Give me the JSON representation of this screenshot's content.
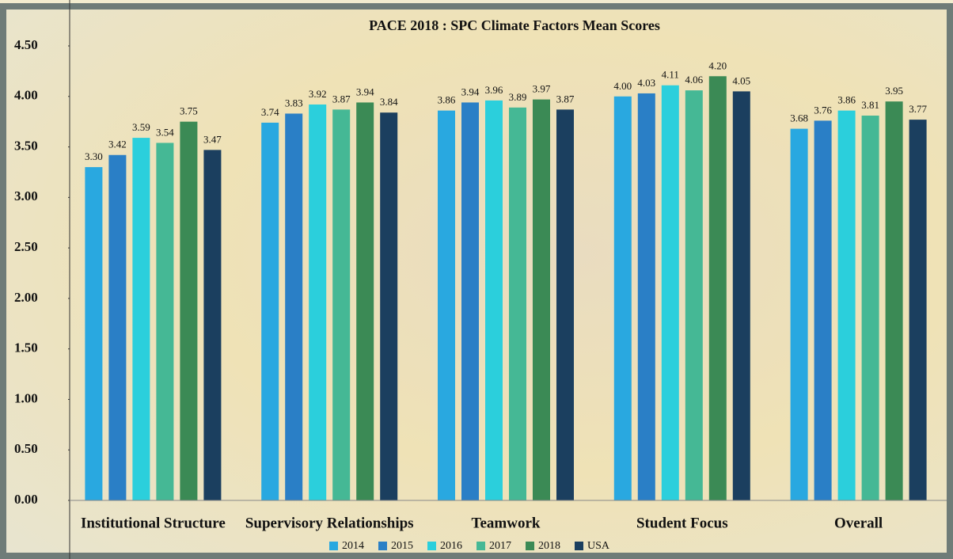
{
  "chart_data": {
    "type": "bar",
    "title": "PACE 2018 : SPC Climate Factors Mean Scores",
    "categories": [
      "Institutional Structure",
      "Supervisory Relationships",
      "Teamwork",
      "Student Focus",
      "Overall"
    ],
    "series": [
      {
        "name": "2014",
        "color": "#29a8e0",
        "values": [
          3.3,
          3.74,
          3.86,
          4.0,
          3.68
        ],
        "value_labels": [
          "3.30",
          "3.74",
          "3.86",
          "4.00",
          "3.68"
        ]
      },
      {
        "name": "2015",
        "color": "#2a7fc6",
        "values": [
          3.42,
          3.83,
          3.94,
          4.03,
          3.76
        ],
        "value_labels": [
          "3.42",
          "3.83",
          "3.94",
          "4.03",
          "3.76"
        ]
      },
      {
        "name": "2016",
        "color": "#2bcfdc",
        "values": [
          3.59,
          3.92,
          3.96,
          4.11,
          3.86
        ],
        "value_labels": [
          "3.59",
          "3.92",
          "3.96",
          "4.11",
          "3.86"
        ]
      },
      {
        "name": "2017",
        "color": "#45b895",
        "values": [
          3.54,
          3.87,
          3.89,
          4.06,
          3.81
        ],
        "value_labels": [
          "3.54",
          "3.87",
          "3.89",
          "4.06",
          "3.81"
        ]
      },
      {
        "name": "2018",
        "color": "#3b8a55",
        "values": [
          3.75,
          3.94,
          3.97,
          4.2,
          3.95
        ],
        "value_labels": [
          "3.75",
          "3.94",
          "3.97",
          "4.20",
          "3.95"
        ]
      },
      {
        "name": "USA",
        "color": "#1b3f5f",
        "values": [
          3.47,
          3.84,
          3.87,
          4.05,
          3.77
        ],
        "value_labels": [
          "3.47",
          "3.84",
          "3.87",
          "4.05",
          "3.77"
        ]
      }
    ],
    "ylim": [
      0,
      4.5
    ],
    "yticks": [
      {
        "value": 0,
        "label": "0.00"
      },
      {
        "value": 0.5,
        "label": "0.50"
      },
      {
        "value": 1,
        "label": "1.00"
      },
      {
        "value": 1.5,
        "label": "1.50"
      },
      {
        "value": 2,
        "label": "2.00"
      },
      {
        "value": 2.5,
        "label": "2.50"
      },
      {
        "value": 3,
        "label": "3.00"
      },
      {
        "value": 3.5,
        "label": "3.50"
      },
      {
        "value": 4,
        "label": "4.00"
      },
      {
        "value": 4.5,
        "label": "4.50"
      }
    ],
    "grid": false,
    "legend": "bottom"
  }
}
